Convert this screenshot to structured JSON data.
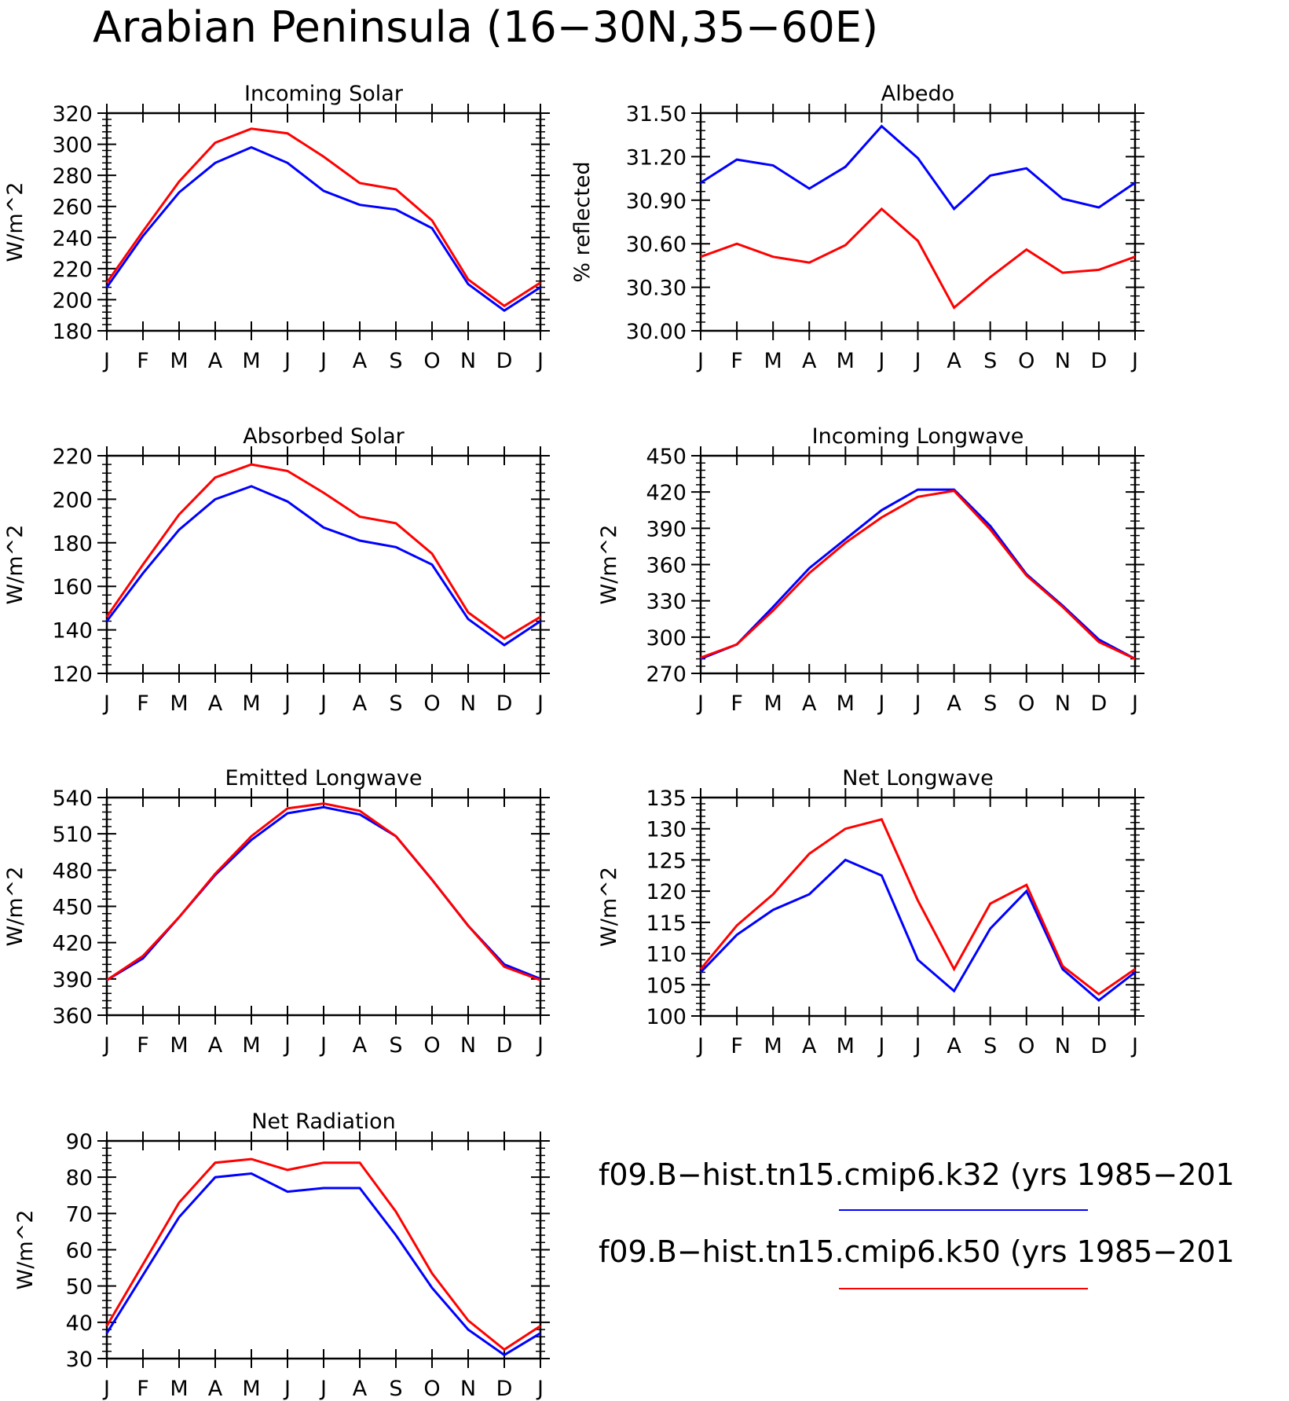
{
  "title": "Arabian Peninsula (16−30N,35−60E)",
  "colors": {
    "series1": "#0000ff",
    "series2": "#ff0000"
  },
  "legend": [
    {
      "label": "f09.B−hist.tn15.cmip6.k32 (yrs 1985−201",
      "color": "#0000ff"
    },
    {
      "label": "f09.B−hist.tn15.cmip6.k50 (yrs 1985−201",
      "color": "#ff0000"
    }
  ],
  "chart_data": [
    {
      "type": "line",
      "title": "Incoming Solar",
      "ylabel": "W/m^2",
      "categories": [
        "J",
        "F",
        "M",
        "A",
        "M",
        "J",
        "J",
        "A",
        "S",
        "O",
        "N",
        "D",
        "J"
      ],
      "ylim": [
        180,
        320
      ],
      "yticks": [
        "320",
        "300",
        "280",
        "260",
        "240",
        "220",
        "200",
        "180"
      ],
      "series": [
        {
          "color": "#0000ff",
          "values": [
            208,
            241,
            269,
            288,
            298,
            288,
            270,
            261,
            258,
            246,
            210,
            193,
            208
          ]
        },
        {
          "color": "#ff0000",
          "values": [
            211,
            244,
            276,
            301,
            310,
            307,
            292,
            275,
            271,
            251,
            213,
            196,
            211
          ]
        }
      ]
    },
    {
      "type": "line",
      "title": "Albedo",
      "ylabel": "% reflected",
      "categories": [
        "J",
        "F",
        "M",
        "A",
        "M",
        "J",
        "J",
        "A",
        "S",
        "O",
        "N",
        "D",
        "J"
      ],
      "ylim": [
        30.0,
        31.5
      ],
      "yticks": [
        "31.50",
        "31.20",
        "30.90",
        "30.60",
        "30.30",
        "30.00"
      ],
      "series": [
        {
          "color": "#0000ff",
          "values": [
            31.02,
            31.18,
            31.14,
            30.98,
            31.13,
            31.41,
            31.19,
            30.84,
            31.07,
            31.12,
            30.91,
            30.85,
            31.02
          ]
        },
        {
          "color": "#ff0000",
          "values": [
            30.51,
            30.6,
            30.51,
            30.47,
            30.59,
            30.84,
            30.62,
            30.16,
            30.37,
            30.56,
            30.4,
            30.42,
            30.51
          ]
        }
      ]
    },
    {
      "type": "line",
      "title": "Absorbed Solar",
      "ylabel": "W/m^2",
      "categories": [
        "J",
        "F",
        "M",
        "A",
        "M",
        "J",
        "J",
        "A",
        "S",
        "O",
        "N",
        "D",
        "J"
      ],
      "ylim": [
        120,
        220
      ],
      "yticks": [
        "220",
        "200",
        "180",
        "160",
        "140",
        "120"
      ],
      "series": [
        {
          "color": "#0000ff",
          "values": [
            144,
            166,
            186,
            200,
            206,
            199,
            187,
            181,
            178,
            170,
            145,
            133,
            144
          ]
        },
        {
          "color": "#ff0000",
          "values": [
            146,
            170,
            193,
            210,
            216,
            213,
            203,
            192,
            189,
            175,
            148,
            136,
            146
          ]
        }
      ]
    },
    {
      "type": "line",
      "title": "Incoming Longwave",
      "ylabel": "W/m^2",
      "categories": [
        "J",
        "F",
        "M",
        "A",
        "M",
        "J",
        "J",
        "A",
        "S",
        "O",
        "N",
        "D",
        "J"
      ],
      "ylim": [
        270,
        450
      ],
      "yticks": [
        "450",
        "420",
        "390",
        "360",
        "330",
        "300",
        "270"
      ],
      "series": [
        {
          "color": "#0000ff",
          "values": [
            282,
            294,
            325,
            357,
            381,
            405,
            422,
            422,
            392,
            352,
            326,
            298,
            282
          ]
        },
        {
          "color": "#ff0000",
          "values": [
            283,
            294,
            322,
            353,
            378,
            399,
            416,
            421,
            389,
            351,
            325,
            296,
            282
          ]
        }
      ]
    },
    {
      "type": "line",
      "title": "Emitted Longwave",
      "ylabel": "W/m^2",
      "categories": [
        "J",
        "F",
        "M",
        "A",
        "M",
        "J",
        "J",
        "A",
        "S",
        "O",
        "N",
        "D",
        "J"
      ],
      "ylim": [
        360,
        540
      ],
      "yticks": [
        "540",
        "510",
        "480",
        "450",
        "420",
        "390",
        "360"
      ],
      "series": [
        {
          "color": "#0000ff",
          "values": [
            389,
            407,
            441,
            476,
            505,
            527,
            532,
            526,
            508,
            472,
            434,
            402,
            390
          ]
        },
        {
          "color": "#ff0000",
          "values": [
            389,
            409,
            441,
            477,
            508,
            531,
            535,
            529,
            508,
            472,
            434,
            400,
            389
          ]
        }
      ]
    },
    {
      "type": "line",
      "title": "Net Longwave",
      "ylabel": "W/m^2",
      "categories": [
        "J",
        "F",
        "M",
        "A",
        "M",
        "J",
        "J",
        "A",
        "S",
        "O",
        "N",
        "D",
        "J"
      ],
      "ylim": [
        100,
        135
      ],
      "yticks": [
        "135",
        "130",
        "125",
        "120",
        "115",
        "110",
        "105",
        "100"
      ],
      "series": [
        {
          "color": "#0000ff",
          "values": [
            107,
            113,
            117,
            119.5,
            125,
            122.5,
            109,
            104,
            114,
            120,
            107.5,
            102.5,
            107
          ]
        },
        {
          "color": "#ff0000",
          "values": [
            107.5,
            114.5,
            119.5,
            126,
            130,
            131.5,
            118.5,
            107.5,
            118,
            121,
            108,
            103.5,
            107.5
          ]
        }
      ]
    },
    {
      "type": "line",
      "title": "Net Radiation",
      "ylabel": "W/m^2",
      "categories": [
        "J",
        "F",
        "M",
        "A",
        "M",
        "J",
        "J",
        "A",
        "S",
        "O",
        "N",
        "D",
        "J"
      ],
      "ylim": [
        30,
        90
      ],
      "yticks": [
        "90",
        "80",
        "70",
        "60",
        "50",
        "40",
        "30"
      ],
      "series": [
        {
          "color": "#0000ff",
          "values": [
            37,
            53,
            69,
            80,
            81,
            76,
            77,
            77,
            64,
            49.5,
            38,
            31,
            37
          ]
        },
        {
          "color": "#ff0000",
          "values": [
            39,
            56,
            73,
            84,
            85,
            82,
            84,
            84,
            70.5,
            53.5,
            40.5,
            32.5,
            39
          ]
        }
      ]
    }
  ]
}
